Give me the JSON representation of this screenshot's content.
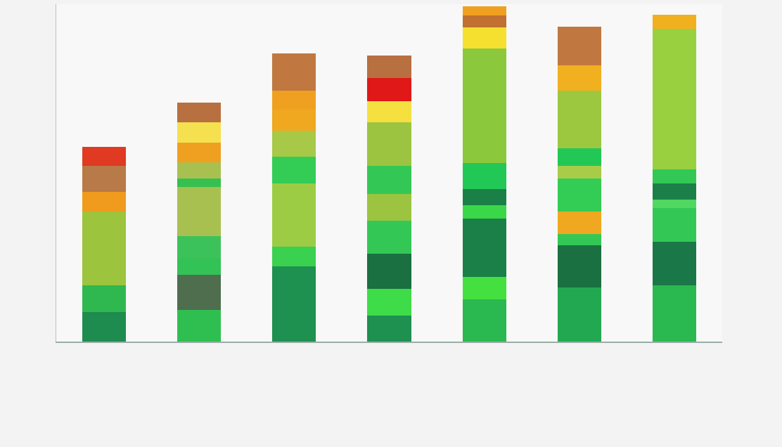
{
  "chart_data": {
    "type": "bar",
    "stacked": true,
    "grid": false,
    "tick_labels": false,
    "categories": [
      null,
      null,
      null,
      null,
      null,
      null,
      null
    ],
    "ylim": [
      0,
      48
    ],
    "series": [
      {
        "values": [
          4.2,
          4.5,
          10.7,
          3.7,
          6.0,
          7.7,
          8.0
        ],
        "colors": [
          "#1e8c4e",
          "#2fbf50",
          "#1e9050",
          "#1e9050",
          "#2ab850",
          "#22a850",
          "#2ab850"
        ]
      },
      {
        "values": [
          3.8,
          5.0,
          2.8,
          3.8,
          3.2,
          6.0,
          6.2
        ],
        "colors": [
          "#2fb84f",
          "#4e6e4e",
          "#3ad050",
          "#3edc48",
          "#44e040",
          "#1a7040",
          "#1a7848"
        ]
      },
      {
        "values": [
          10.5,
          2.3,
          9.0,
          5.0,
          8.3,
          1.6,
          4.8
        ],
        "colors": [
          "#9cc43c",
          "#33c255",
          "#9ccc44",
          "#1a7040",
          "#1a8048",
          "#33c855",
          "#33c855"
        ]
      },
      {
        "values": [
          2.8,
          3.2,
          3.8,
          4.7,
          1.9,
          3.2,
          1.2
        ],
        "colors": [
          "#f09a1e",
          "#3cc25a",
          "#33cc55",
          "#33c855",
          "#3ad848",
          "#f0a820",
          "#50d860"
        ]
      },
      {
        "values": [
          3.7,
          7.0,
          3.7,
          3.8,
          2.3,
          4.7,
          2.3
        ],
        "colors": [
          "#b87a48",
          "#a8c050",
          "#a8c848",
          "#9cc440",
          "#1a8048",
          "#33cc55",
          "#1a8048"
        ]
      },
      {
        "values": [
          2.7,
          1.2,
          3.0,
          4.0,
          3.7,
          1.8,
          2.0
        ],
        "colors": [
          "#e03a22",
          "#35c050",
          "#f0a820",
          "#33c855",
          "#22c855",
          "#a8cc48",
          "#33c855"
        ]
      },
      {
        "values": [
          null,
          2.3,
          2.7,
          6.2,
          16.3,
          2.5,
          20.0
        ],
        "colors": [
          null,
          "#a8c050",
          "#f0a020",
          "#9cc440",
          "#8cc83c",
          "#22c855",
          "#98d040"
        ]
      },
      {
        "values": [
          null,
          2.8,
          5.3,
          3.0,
          3.0,
          8.2,
          2.0
        ],
        "colors": [
          null,
          "#f0a020",
          "#c07840",
          "#f5e040",
          "#f5e030",
          "#9cc840",
          "#f0b020"
        ]
      },
      {
        "values": [
          null,
          2.9,
          null,
          3.3,
          1.7,
          3.6,
          null
        ],
        "colors": [
          null,
          "#f5e050",
          null,
          "#e01818",
          "#c07030",
          "#f0b020",
          null
        ]
      },
      {
        "values": [
          null,
          2.8,
          null,
          3.2,
          1.3,
          5.5,
          null
        ],
        "colors": [
          null,
          "#b87040",
          null,
          "#b87040",
          "#f0a020",
          "#c07840",
          null
        ]
      }
    ]
  }
}
